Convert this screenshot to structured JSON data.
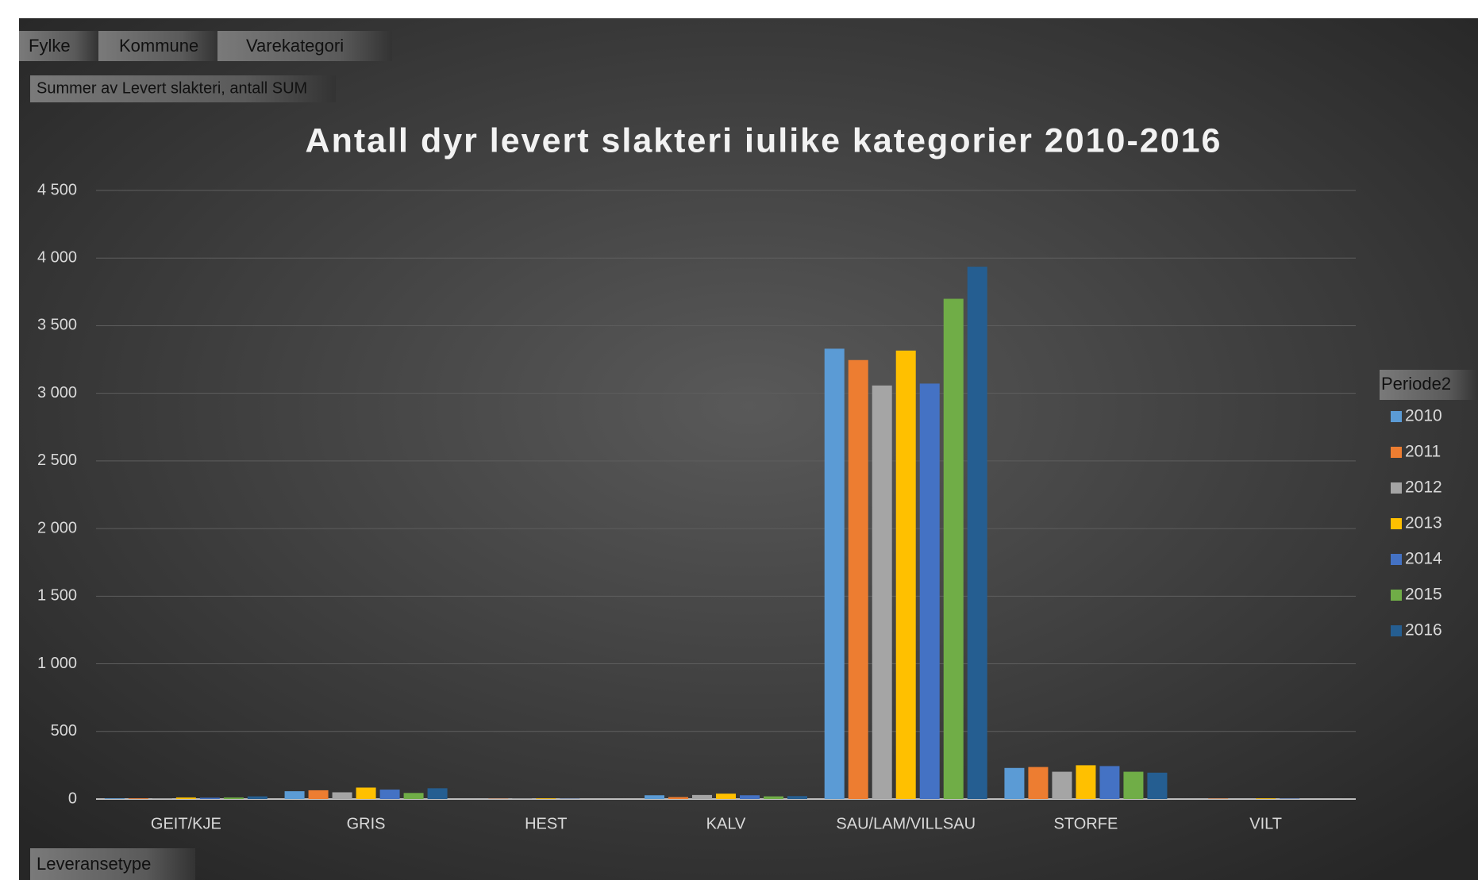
{
  "chart_data": {
    "type": "bar",
    "title": "Antall dyr levert slakteri  iulike kategorier  2010-2016",
    "filters": [
      "Fylke",
      "Kommune",
      "Varekategori"
    ],
    "value_field": "Summer av Levert slakteri, antall SUM",
    "axis_field": "Leveransetype",
    "legend_title": "Periode2",
    "legend": "right",
    "grid": true,
    "categories": [
      "GEIT/KJE",
      "GRIS",
      "HEST",
      "KALV",
      "SAU/LAM/VILLSAU",
      "STORFE",
      "VILT"
    ],
    "series": [
      {
        "name": "2010",
        "color": "#5b9bd5",
        "values": [
          5,
          58,
          0,
          28,
          3330,
          230,
          0
        ]
      },
      {
        "name": "2011",
        "color": "#ed7d31",
        "values": [
          5,
          65,
          2,
          15,
          3246,
          237,
          3
        ]
      },
      {
        "name": "2012",
        "color": "#a5a5a5",
        "values": [
          5,
          50,
          5,
          30,
          3058,
          202,
          0
        ]
      },
      {
        "name": "2013",
        "color": "#ffc000",
        "values": [
          12,
          85,
          5,
          40,
          3316,
          250,
          5
        ]
      },
      {
        "name": "2014",
        "color": "#4472c4",
        "values": [
          10,
          70,
          2,
          28,
          3072,
          244,
          3
        ]
      },
      {
        "name": "2015",
        "color": "#70ad47",
        "values": [
          12,
          45,
          0,
          20,
          3699,
          202,
          0
        ]
      },
      {
        "name": "2016",
        "color": "#255e91",
        "values": [
          20,
          80,
          0,
          22,
          3936,
          195,
          0
        ]
      }
    ],
    "ylim": [
      0,
      4500
    ],
    "yticks": [
      0,
      500,
      {
        "value": 1000,
        "label": "1 000"
      },
      {
        "value": 1500,
        "label": "1 500"
      },
      {
        "value": 2000,
        "label": "2 000"
      },
      {
        "value": 2500,
        "label": "2 500"
      },
      {
        "value": 3000,
        "label": "3 000"
      },
      {
        "value": 3500,
        "label": "3 500"
      },
      {
        "value": 4000,
        "label": "4 000"
      },
      {
        "value": 4500,
        "label": "4 500"
      }
    ]
  }
}
